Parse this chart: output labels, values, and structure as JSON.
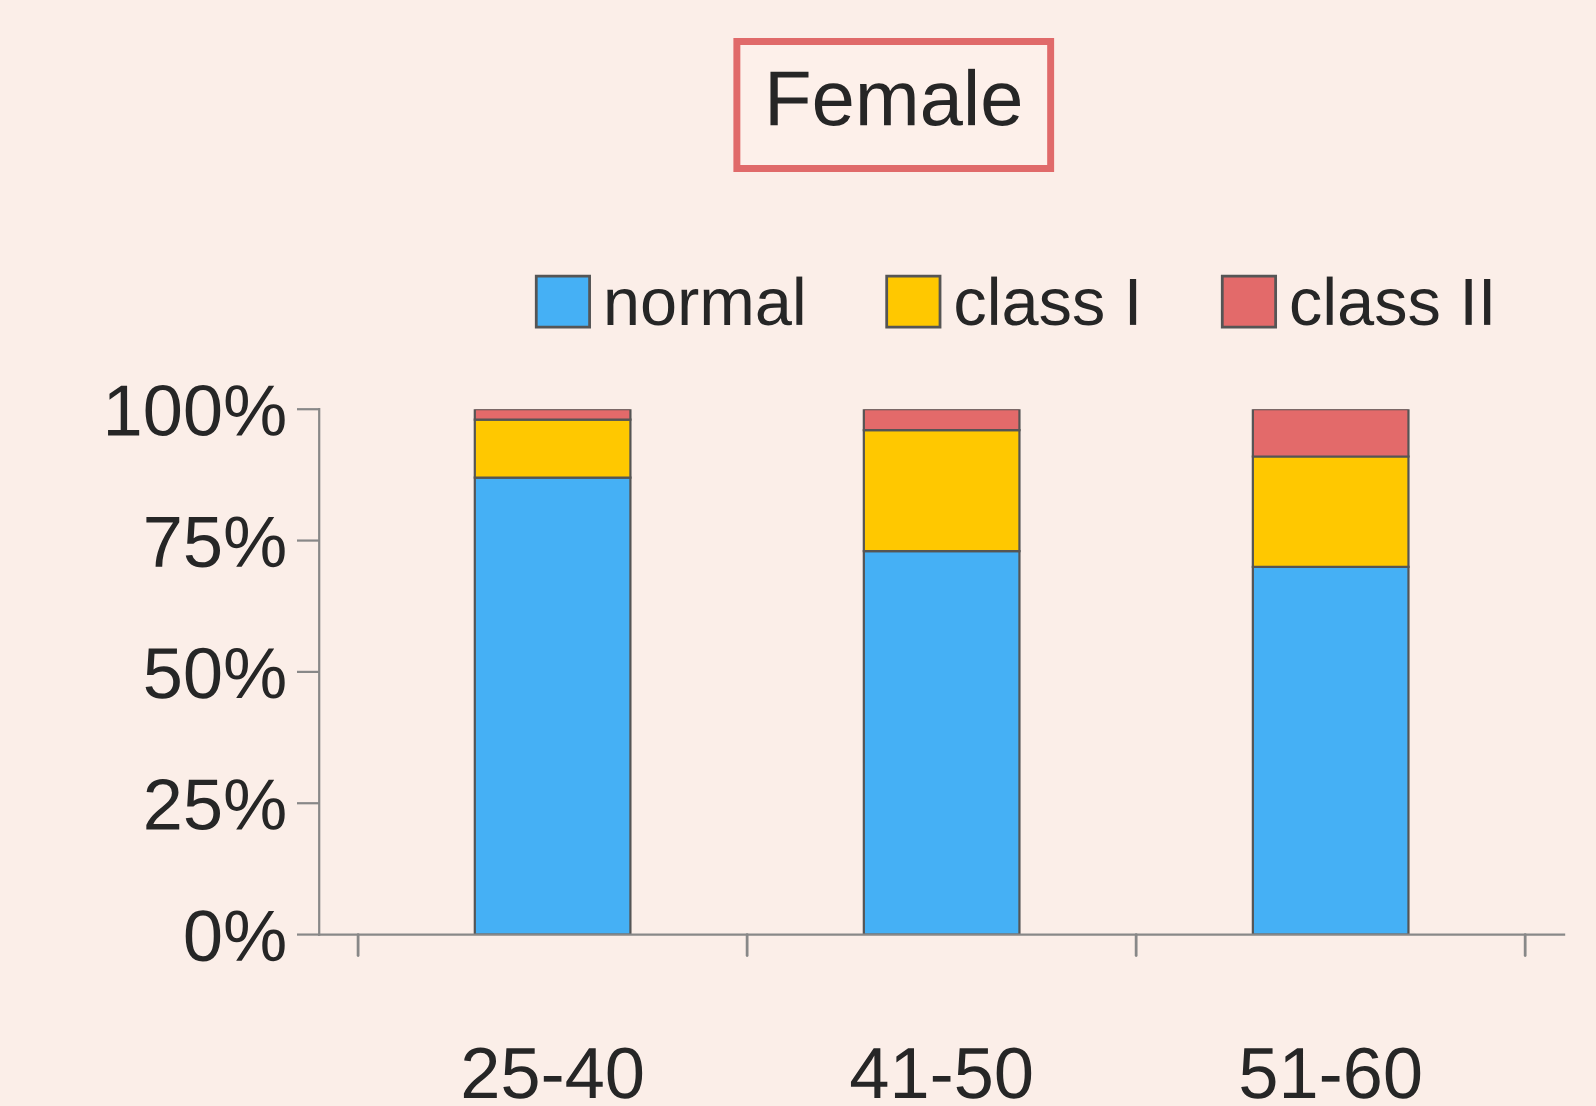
{
  "chart_data": {
    "type": "bar",
    "title": "Female",
    "stacked": true,
    "categories": [
      "25-40",
      "41-50",
      "51-60"
    ],
    "series": [
      {
        "name": "normal",
        "color": "#45b0f5",
        "values": [
          87,
          73,
          70
        ]
      },
      {
        "name": "class I",
        "color": "#ffc800",
        "values": [
          11,
          23,
          21
        ]
      },
      {
        "name": "class II",
        "color": "#e36a6a",
        "values": [
          2,
          4,
          9
        ]
      }
    ],
    "ylim": [
      0,
      100
    ],
    "yticks": [
      {
        "value": 0,
        "label": "0%"
      },
      {
        "value": 25,
        "label": "25%"
      },
      {
        "value": 50,
        "label": "50%"
      },
      {
        "value": 75,
        "label": "75%"
      },
      {
        "value": 100,
        "label": "100%"
      }
    ],
    "grid": false,
    "legend": "top"
  }
}
